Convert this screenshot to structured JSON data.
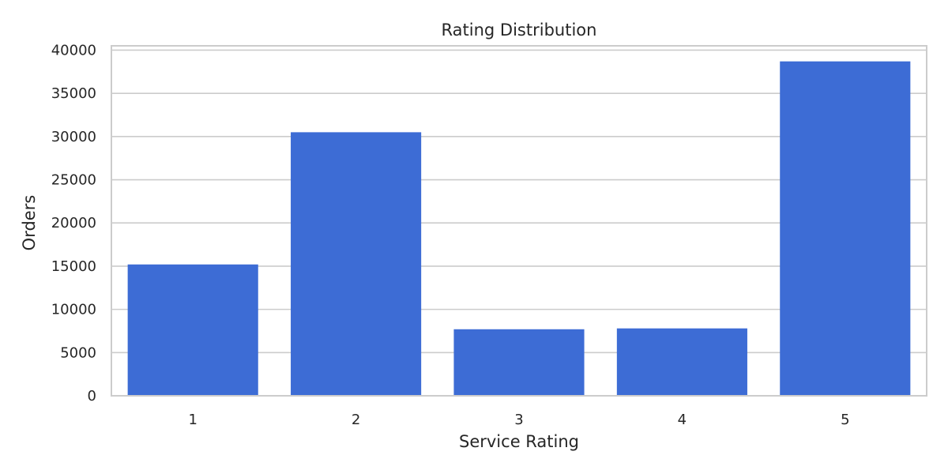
{
  "chart_data": {
    "type": "bar",
    "title": "Rating Distribution",
    "xlabel": "Service Rating",
    "ylabel": "Orders",
    "categories": [
      "1",
      "2",
      "3",
      "4",
      "5"
    ],
    "values": [
      15200,
      30500,
      7700,
      7800,
      38700
    ],
    "ylim": [
      0,
      40500
    ],
    "yticks": [
      0,
      5000,
      10000,
      15000,
      20000,
      25000,
      30000,
      35000,
      40000
    ],
    "ytick_labels": [
      "0",
      "5000",
      "10000",
      "15000",
      "20000",
      "25000",
      "30000",
      "35000",
      "40000"
    ],
    "grid": "y",
    "bar_color": "#3d6cd5",
    "grid_color": "#cccccc",
    "frame_color": "#cccccc"
  }
}
